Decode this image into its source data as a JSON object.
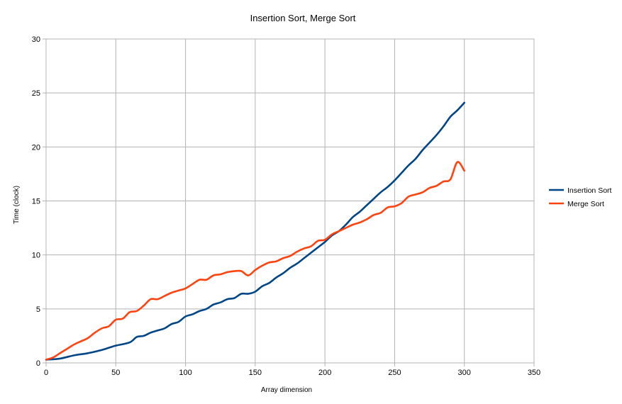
{
  "chart_data": {
    "type": "line",
    "title": "Insertion Sort, Merge Sort",
    "xlabel": "Array dimension",
    "ylabel": "Time (clock)",
    "xlim": [
      0,
      350
    ],
    "ylim": [
      0,
      30
    ],
    "xticks": [
      0,
      50,
      100,
      150,
      200,
      250,
      300,
      350
    ],
    "yticks": [
      0,
      5,
      10,
      15,
      20,
      25,
      30
    ],
    "grid": true,
    "legend_position": "right",
    "series": [
      {
        "name": "Insertion Sort",
        "color": "#004586",
        "x": [
          0,
          10,
          20,
          30,
          40,
          45,
          50,
          60,
          65,
          70,
          75,
          80,
          85,
          90,
          95,
          100,
          105,
          110,
          115,
          120,
          125,
          130,
          135,
          140,
          145,
          150,
          155,
          160,
          165,
          170,
          175,
          180,
          185,
          190,
          195,
          200,
          205,
          210,
          215,
          220,
          225,
          230,
          235,
          240,
          245,
          250,
          255,
          260,
          265,
          270,
          275,
          280,
          285,
          290,
          295,
          300
        ],
        "y": [
          0.3,
          0.4,
          0.7,
          0.9,
          1.2,
          1.4,
          1.6,
          1.9,
          2.4,
          2.5,
          2.8,
          3.0,
          3.2,
          3.6,
          3.8,
          4.3,
          4.5,
          4.8,
          5.0,
          5.4,
          5.6,
          5.9,
          6.0,
          6.4,
          6.4,
          6.6,
          7.1,
          7.4,
          7.9,
          8.3,
          8.8,
          9.2,
          9.7,
          10.2,
          10.7,
          11.2,
          11.8,
          12.2,
          12.8,
          13.5,
          14.0,
          14.6,
          15.2,
          15.8,
          16.3,
          16.9,
          17.6,
          18.3,
          18.9,
          19.7,
          20.4,
          21.1,
          21.9,
          22.8,
          23.4,
          24.1
        ]
      },
      {
        "name": "Merge Sort",
        "color": "#ff420e",
        "x": [
          0,
          5,
          10,
          15,
          20,
          25,
          30,
          35,
          40,
          45,
          50,
          55,
          60,
          65,
          70,
          75,
          80,
          85,
          90,
          95,
          100,
          105,
          110,
          115,
          120,
          125,
          130,
          135,
          140,
          145,
          150,
          155,
          160,
          165,
          170,
          175,
          180,
          185,
          190,
          195,
          200,
          205,
          210,
          215,
          220,
          225,
          230,
          235,
          240,
          245,
          250,
          255,
          260,
          265,
          270,
          275,
          280,
          285,
          290,
          295,
          300
        ],
        "y": [
          0.3,
          0.5,
          0.9,
          1.3,
          1.7,
          2.0,
          2.3,
          2.8,
          3.2,
          3.4,
          4.0,
          4.1,
          4.7,
          4.8,
          5.3,
          5.9,
          5.9,
          6.2,
          6.5,
          6.7,
          6.9,
          7.3,
          7.7,
          7.7,
          8.1,
          8.2,
          8.4,
          8.5,
          8.5,
          8.1,
          8.6,
          9.0,
          9.3,
          9.4,
          9.7,
          9.9,
          10.3,
          10.6,
          10.8,
          11.3,
          11.4,
          11.9,
          12.2,
          12.5,
          12.8,
          13.0,
          13.3,
          13.7,
          13.9,
          14.4,
          14.5,
          14.8,
          15.4,
          15.6,
          15.8,
          16.2,
          16.4,
          16.8,
          17.0,
          18.6,
          17.8
        ]
      }
    ]
  }
}
